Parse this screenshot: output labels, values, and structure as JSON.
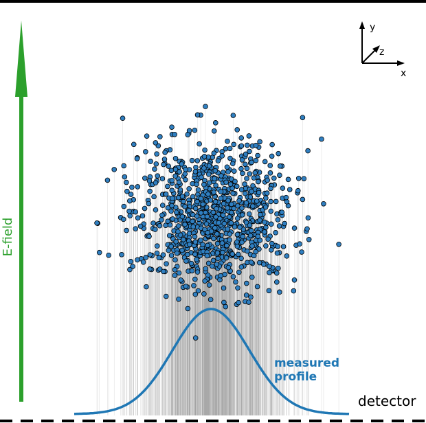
{
  "labels": {
    "e_field": "E-field",
    "axis_y": "y",
    "axis_z": "z",
    "axis_x": "x",
    "profile": [
      "measured",
      "profile"
    ],
    "detector": "detector"
  }
}
